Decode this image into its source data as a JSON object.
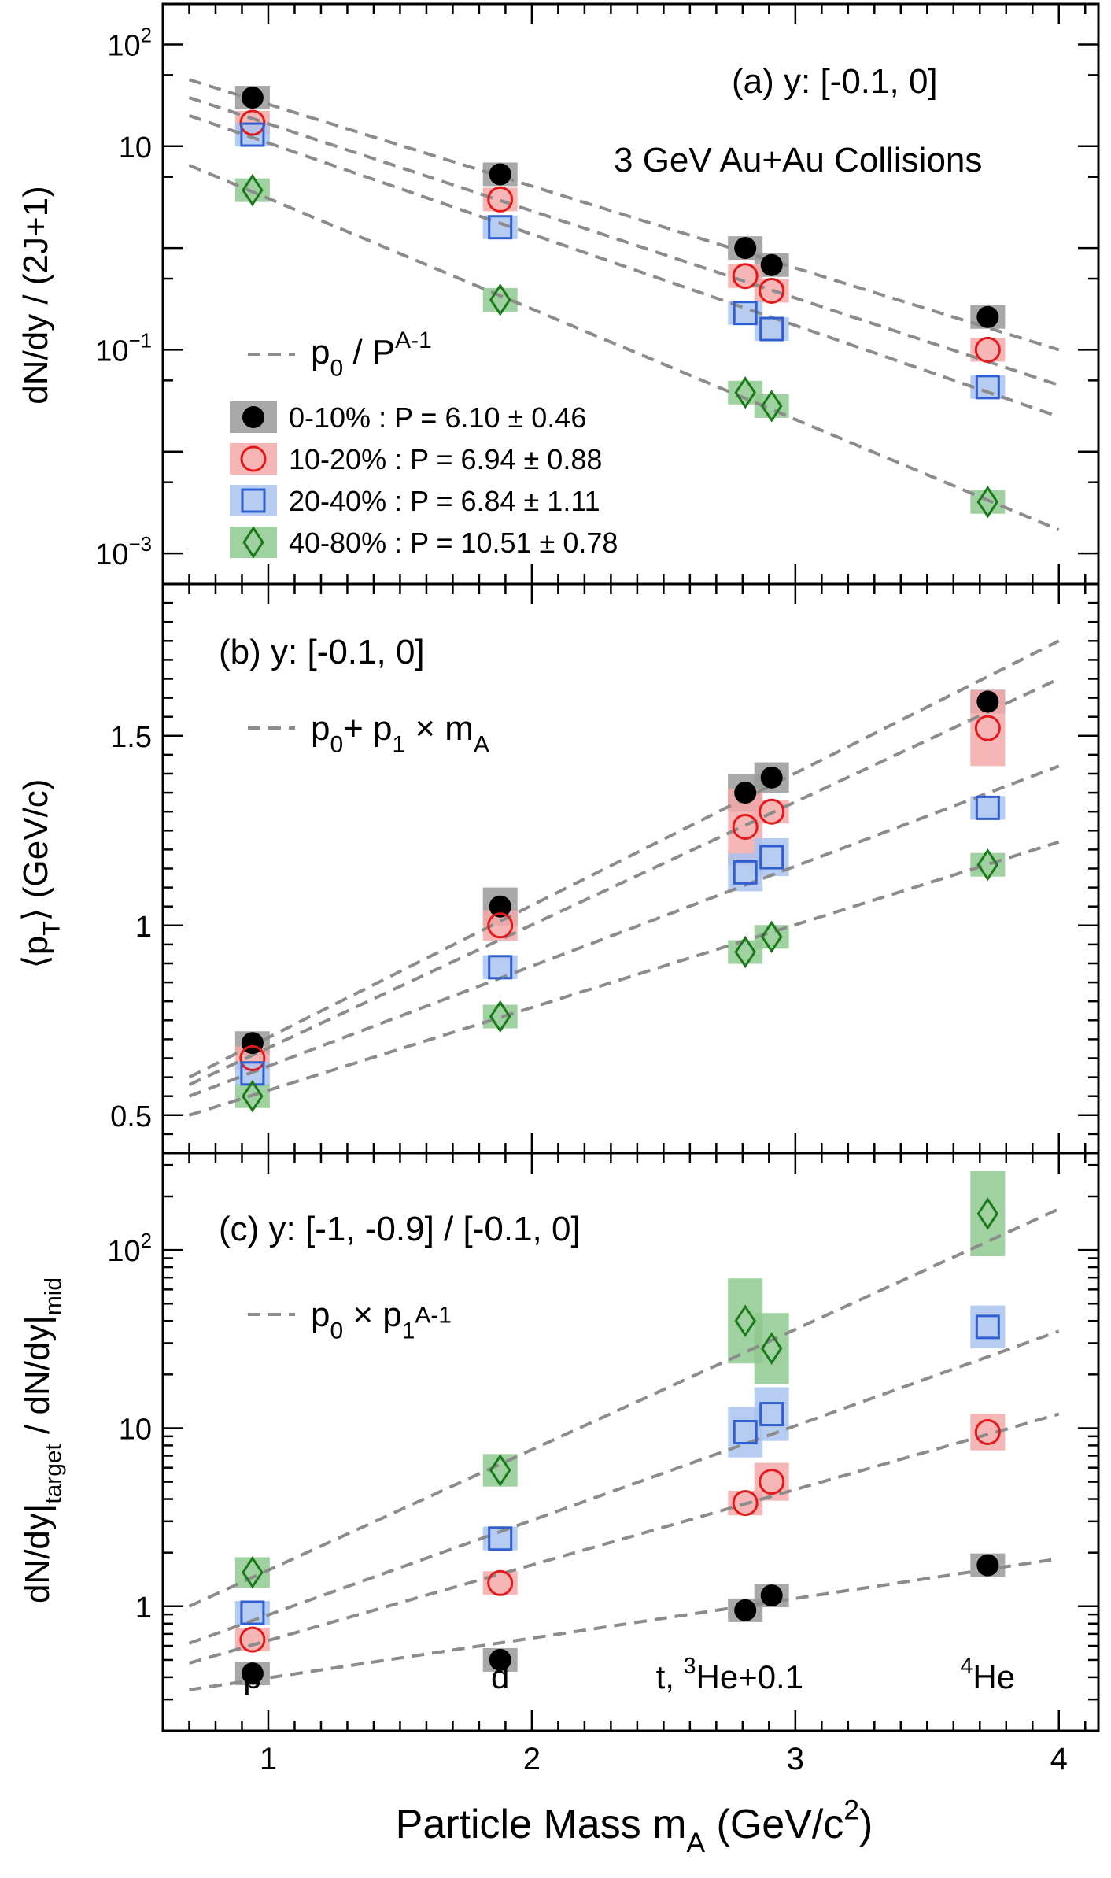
{
  "x_axis": {
    "label_main": "Particle Mass m",
    "label_sub": "A",
    "label_paren_open": " (GeV/c",
    "label_sup": "2",
    "label_paren_close": ")",
    "xlim": [
      0.6,
      4.15
    ],
    "ticks": [
      1,
      2,
      3,
      4
    ],
    "tick_labels": [
      "1",
      "2",
      "3",
      "4"
    ]
  },
  "colors": {
    "c0_10": "#000000",
    "c10_20": "#e31a1c",
    "c20_40": "#2f5fd0",
    "c40_80": "#1a7a1a",
    "band0_10": "#999999",
    "band10_20": "#f4a9a9",
    "band20_40": "#a9c3ee",
    "band40_80": "#8fc98f",
    "fit": "#8c8c8c"
  },
  "particle_labels": [
    {
      "x": 0.94,
      "text": "p"
    },
    {
      "x": 1.88,
      "text": "d"
    },
    {
      "x": 2.9,
      "text": "t, ",
      "sup": "3",
      "after": "He+0.1"
    },
    {
      "x": 3.73,
      "sup": "4",
      "after": "He"
    }
  ],
  "chart_data": [
    {
      "type": "scatter",
      "panel": "a",
      "scale": "log",
      "title": "(a)  y: [-0.1, 0]",
      "subtitle": "3 GeV Au+Au Collisions",
      "ylabel": "dN/dy / (2J+1)",
      "ylim": [
        0.0005,
        250
      ],
      "yticks": [
        {
          "v": 100,
          "base": "10",
          "exp": "2"
        },
        {
          "v": 10,
          "base": "10",
          "exp": ""
        },
        {
          "v": 0.1,
          "base": "10",
          "exp": "−1"
        },
        {
          "v": 0.001,
          "base": "10",
          "exp": "−3"
        }
      ],
      "fit_label": {
        "main": "p",
        "sub": "0",
        "mid": " / P",
        "sup": "A-1"
      },
      "legend": [
        {
          "key": "c0_10",
          "marker": "circle-filled",
          "text": " 0-10%  : P = 6.10 ± 0.46"
        },
        {
          "key": "c10_20",
          "marker": "circle-open",
          "text": "10-20% : P = 6.94 ± 0.88"
        },
        {
          "key": "c20_40",
          "marker": "square-open",
          "text": "20-40% : P = 6.84 ± 1.11"
        },
        {
          "key": "c40_80",
          "marker": "diamond-open",
          "text": "40-80% : P = 10.51 ± 0.78"
        }
      ],
      "series": [
        {
          "key": "c0_10",
          "marker": "circle-filled",
          "x": [
            0.94,
            1.88,
            2.81,
            2.91,
            3.73
          ],
          "y": [
            30,
            5.3,
            1.0,
            0.68,
            0.21
          ],
          "fit": {
            "x0": 0.7,
            "y0": 45,
            "x1": 4.0,
            "y1": 0.1
          }
        },
        {
          "key": "c10_20",
          "marker": "circle-open",
          "x": [
            0.94,
            1.88,
            2.81,
            2.91,
            3.73
          ],
          "y": [
            17,
            3.0,
            0.53,
            0.38,
            0.1
          ],
          "fit": {
            "x0": 0.7,
            "y0": 30,
            "x1": 4.0,
            "y1": 0.045
          }
        },
        {
          "key": "c20_40",
          "marker": "square-open",
          "x": [
            0.94,
            1.88,
            2.81,
            2.91,
            3.73
          ],
          "y": [
            13,
            1.6,
            0.23,
            0.16,
            0.043
          ],
          "fit": {
            "x0": 0.7,
            "y0": 20,
            "x1": 4.0,
            "y1": 0.022
          }
        },
        {
          "key": "c40_80",
          "marker": "diamond-open",
          "x": [
            0.94,
            1.88,
            2.81,
            2.91,
            3.73
          ],
          "y": [
            3.7,
            0.31,
            0.038,
            0.028,
            0.0032
          ],
          "fit": {
            "x0": 0.7,
            "y0": 6.5,
            "x1": 4.0,
            "y1": 0.0017
          }
        }
      ]
    },
    {
      "type": "scatter",
      "panel": "b",
      "scale": "linear",
      "title": "(b)  y: [-0.1, 0]",
      "ylabel_main": "⟨p",
      "ylabel_sub": "T",
      "ylabel_rest": "⟩ (GeV/c)",
      "ylim": [
        0.4,
        1.9
      ],
      "yticks": [
        {
          "v": 0.5,
          "label": "0.5"
        },
        {
          "v": 1,
          "label": "1"
        },
        {
          "v": 1.5,
          "label": "1.5"
        }
      ],
      "fit_label": {
        "p0": "p",
        "s0": "0",
        "plus": "+ p",
        "s1": "1",
        "times": " × m",
        "sA": "A"
      },
      "series": [
        {
          "key": "c0_10",
          "marker": "circle-filled",
          "x": [
            0.94,
            1.88,
            2.81,
            2.91,
            3.73
          ],
          "y": [
            0.69,
            1.05,
            1.35,
            1.39,
            1.59
          ],
          "err": [
            0.02,
            0.05,
            0.05,
            0.04,
            0.03
          ],
          "fit": {
            "x0": 0.7,
            "y0": 0.6,
            "x1": 4.0,
            "y1": 1.75
          }
        },
        {
          "key": "c10_20",
          "marker": "circle-open",
          "x": [
            0.94,
            1.88,
            2.81,
            2.91,
            3.73
          ],
          "y": [
            0.65,
            1.0,
            1.26,
            1.3,
            1.52
          ],
          "err": [
            0.02,
            0.04,
            0.1,
            0.03,
            0.1
          ],
          "fit": {
            "x0": 0.7,
            "y0": 0.58,
            "x1": 4.0,
            "y1": 1.65
          }
        },
        {
          "key": "c20_40",
          "marker": "square-open",
          "x": [
            0.94,
            1.88,
            2.81,
            2.91,
            3.73
          ],
          "y": [
            0.61,
            0.89,
            1.14,
            1.18,
            1.31
          ],
          "err": [
            0.02,
            0.03,
            0.05,
            0.05,
            0.02
          ],
          "fit": {
            "x0": 0.7,
            "y0": 0.55,
            "x1": 4.0,
            "y1": 1.42
          }
        },
        {
          "key": "c40_80",
          "marker": "diamond-open",
          "x": [
            0.94,
            1.88,
            2.81,
            2.91,
            3.73
          ],
          "y": [
            0.55,
            0.76,
            0.93,
            0.97,
            1.16
          ],
          "err": [
            0.015,
            0.02,
            0.03,
            0.03,
            0.03
          ],
          "fit": {
            "x0": 0.7,
            "y0": 0.5,
            "x1": 4.0,
            "y1": 1.22
          }
        }
      ]
    },
    {
      "type": "scatter",
      "panel": "c",
      "scale": "log",
      "title": "(c)  y: [-1, -0.9] / [-0.1, 0]",
      "ylabel": {
        "a": "dN/dy|",
        "a_sub": "target",
        "b": " / dN/dy|",
        "b_sub": "mid"
      },
      "ylim": [
        0.2,
        350
      ],
      "yticks": [
        {
          "v": 100,
          "base": "10",
          "exp": "2"
        },
        {
          "v": 10,
          "base": "10",
          "exp": ""
        },
        {
          "v": 1,
          "base": "1",
          "exp": ""
        }
      ],
      "fit_label": {
        "p0": "p",
        "s0": "0",
        "times": " × p",
        "s1": "1",
        "sup": "A-1"
      },
      "series": [
        {
          "key": "c0_10",
          "marker": "circle-filled",
          "x": [
            0.94,
            1.88,
            2.81,
            2.91,
            3.73
          ],
          "y": [
            0.42,
            0.5,
            0.95,
            1.15,
            1.7
          ],
          "err": [
            0.02,
            0.03,
            0.08,
            0.12,
            0.15
          ],
          "fit": {
            "x0": 0.7,
            "y0": 0.34,
            "x1": 4.0,
            "y1": 1.85
          }
        },
        {
          "key": "c10_20",
          "marker": "circle-open",
          "x": [
            0.94,
            1.88,
            2.81,
            2.91,
            3.73
          ],
          "y": [
            0.65,
            1.35,
            3.8,
            5.0,
            9.5
          ],
          "err": [
            0.05,
            0.1,
            0.6,
            1.2,
            2.2
          ],
          "fit": {
            "x0": 0.7,
            "y0": 0.48,
            "x1": 4.0,
            "y1": 12
          }
        },
        {
          "key": "c20_40",
          "marker": "square-open",
          "x": [
            0.94,
            1.88,
            2.81,
            2.91,
            3.73
          ],
          "y": [
            0.92,
            2.4,
            9.5,
            12,
            37
          ],
          "err": [
            0.08,
            0.2,
            3.0,
            4.0,
            10
          ],
          "fit": {
            "x0": 0.7,
            "y0": 0.62,
            "x1": 4.0,
            "y1": 35
          }
        },
        {
          "key": "c40_80",
          "marker": "diamond-open",
          "x": [
            0.94,
            1.88,
            2.81,
            2.91,
            3.73
          ],
          "y": [
            1.55,
            5.8,
            40,
            28,
            160
          ],
          "err": [
            0.3,
            1.2,
            20,
            12,
            80
          ],
          "fit": {
            "x0": 0.7,
            "y0": 1.0,
            "x1": 4.0,
            "y1": 170
          }
        }
      ]
    }
  ]
}
